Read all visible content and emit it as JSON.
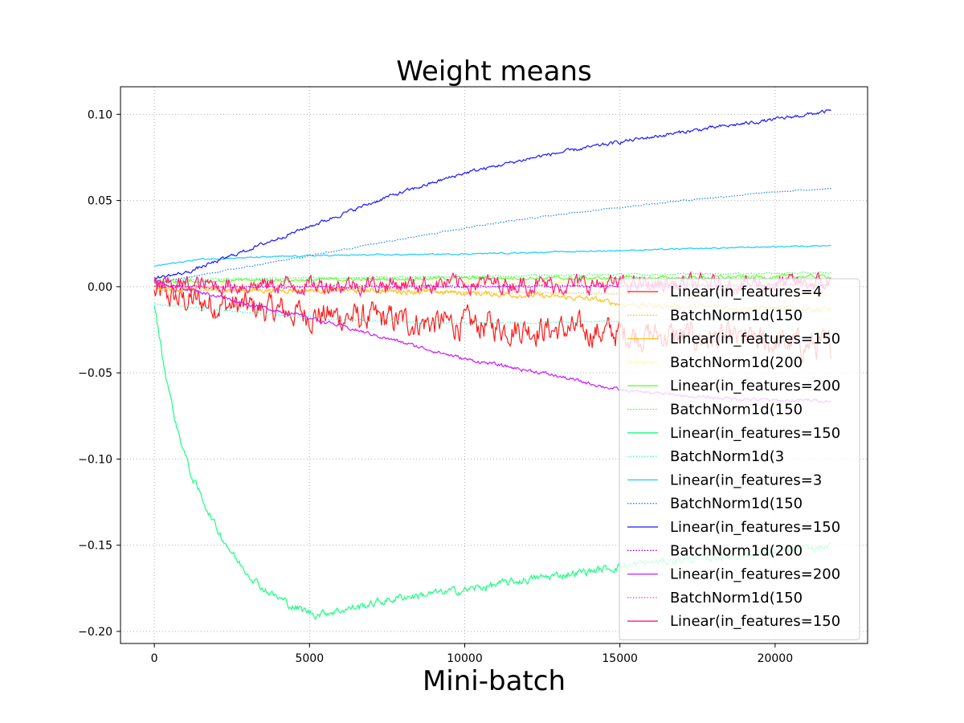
{
  "chart_data": {
    "type": "line",
    "title": "Weight means",
    "xlabel": "Mini-batch",
    "ylabel": "",
    "xlim": [
      -1090,
      22980
    ],
    "ylim": [
      -0.207,
      0.116
    ],
    "xticks": [
      0,
      5000,
      10000,
      15000,
      20000
    ],
    "xtick_labels": [
      "0",
      "5000",
      "10000",
      "15000",
      "20000"
    ],
    "yticks": [
      0.1,
      0.05,
      0.0,
      -0.05,
      -0.1,
      -0.15,
      -0.2
    ],
    "ytick_labels": [
      "0.10",
      "0.05",
      "0.00",
      "−0.05",
      "−0.10",
      "−0.15",
      "−0.20"
    ],
    "grid": true,
    "legend_position": "right",
    "series": [
      {
        "name": "Linear(in_features=4",
        "color": "#ff1a1a",
        "style": "solid",
        "noise": 0.0065,
        "points": [
          [
            0,
            -0.004
          ],
          [
            1000,
            -0.008
          ],
          [
            3000,
            -0.012
          ],
          [
            5000,
            -0.016
          ],
          [
            8000,
            -0.02
          ],
          [
            11000,
            -0.023
          ],
          [
            14000,
            -0.026
          ],
          [
            17000,
            -0.029
          ],
          [
            21800,
            -0.035
          ]
        ]
      },
      {
        "name": "BatchNorm1d(150",
        "color": "#ffb833",
        "style": "dotted",
        "noise": 0.0004,
        "points": [
          [
            0,
            -0.002
          ],
          [
            5000,
            -0.002
          ],
          [
            10000,
            -0.003
          ],
          [
            15000,
            -0.004
          ],
          [
            21800,
            -0.005
          ]
        ]
      },
      {
        "name": "Linear(in_features=150",
        "color": "#ffc21a",
        "style": "solid",
        "noise": 0.0012,
        "points": [
          [
            0,
            -0.001
          ],
          [
            3000,
            -0.002
          ],
          [
            6000,
            -0.002
          ],
          [
            9000,
            -0.003
          ],
          [
            12000,
            -0.005
          ],
          [
            14000,
            -0.007
          ],
          [
            15000,
            -0.01
          ],
          [
            16000,
            -0.011
          ],
          [
            18000,
            -0.012
          ],
          [
            21800,
            -0.013
          ]
        ]
      },
      {
        "name": "BatchNorm1d(200",
        "color": "#ffff33",
        "style": "dotted",
        "noise": 0.0004,
        "points": [
          [
            0,
            0.001
          ],
          [
            10000,
            0.002
          ],
          [
            21800,
            0.003
          ]
        ]
      },
      {
        "name": "Linear(in_features=200",
        "color": "#66ff33",
        "style": "solid",
        "noise": 0.0008,
        "points": [
          [
            0,
            0.003
          ],
          [
            5000,
            0.004
          ],
          [
            10000,
            0.005
          ],
          [
            15000,
            0.005
          ],
          [
            21800,
            0.006
          ]
        ]
      },
      {
        "name": "BatchNorm1d(150",
        "color": "#33ff4d",
        "style": "dotted",
        "noise": 0.0004,
        "points": [
          [
            0,
            0.004
          ],
          [
            5000,
            0.005
          ],
          [
            10000,
            0.006
          ],
          [
            15000,
            0.007
          ],
          [
            21800,
            0.008
          ]
        ]
      },
      {
        "name": "Linear(in_features=150",
        "color": "#1aff80",
        "style": "solid",
        "noise": 0.0018,
        "points": [
          [
            0,
            -0.01
          ],
          [
            300,
            -0.045
          ],
          [
            700,
            -0.08
          ],
          [
            1200,
            -0.11
          ],
          [
            2000,
            -0.14
          ],
          [
            2700,
            -0.16
          ],
          [
            3500,
            -0.175
          ],
          [
            4500,
            -0.186
          ],
          [
            5200,
            -0.19
          ],
          [
            6500,
            -0.186
          ],
          [
            8000,
            -0.18
          ],
          [
            10000,
            -0.176
          ],
          [
            12000,
            -0.17
          ],
          [
            14000,
            -0.165
          ],
          [
            16000,
            -0.16
          ],
          [
            18000,
            -0.157
          ],
          [
            20000,
            -0.154
          ],
          [
            21800,
            -0.151
          ]
        ]
      },
      {
        "name": "BatchNorm1d(3",
        "color": "#33ffcc",
        "style": "dotted",
        "noise": 0.0004,
        "points": [
          [
            0,
            -0.01
          ],
          [
            3000,
            -0.015
          ],
          [
            6000,
            -0.019
          ],
          [
            9000,
            -0.021
          ],
          [
            12000,
            -0.021
          ],
          [
            15000,
            -0.02
          ],
          [
            18000,
            -0.018
          ],
          [
            21800,
            -0.014
          ]
        ]
      },
      {
        "name": "Linear(in_features=3",
        "color": "#1accff",
        "style": "solid",
        "noise": 0.0003,
        "points": [
          [
            0,
            0.012
          ],
          [
            1500,
            0.016
          ],
          [
            5000,
            0.018
          ],
          [
            10000,
            0.019
          ],
          [
            15000,
            0.021
          ],
          [
            21800,
            0.024
          ]
        ]
      },
      {
        "name": "BatchNorm1d(150",
        "color": "#1a80ff",
        "style": "dotted",
        "noise": 0.0003,
        "points": [
          [
            0,
            0.002
          ],
          [
            2500,
            0.01
          ],
          [
            5000,
            0.018
          ],
          [
            8000,
            0.028
          ],
          [
            11000,
            0.037
          ],
          [
            14000,
            0.044
          ],
          [
            17000,
            0.05
          ],
          [
            20000,
            0.055
          ],
          [
            21800,
            0.057
          ]
        ]
      },
      {
        "name": "Linear(in_features=150",
        "color": "#1a1aff",
        "style": "solid",
        "noise": 0.0008,
        "points": [
          [
            0,
            0.005
          ],
          [
            1000,
            0.008
          ],
          [
            2500,
            0.018
          ],
          [
            5000,
            0.035
          ],
          [
            7500,
            0.052
          ],
          [
            10000,
            0.066
          ],
          [
            12500,
            0.076
          ],
          [
            15000,
            0.084
          ],
          [
            17500,
            0.091
          ],
          [
            20000,
            0.097
          ],
          [
            21800,
            0.102
          ]
        ]
      },
      {
        "name": "BatchNorm1d(200",
        "color": "#8000ff",
        "style": "dotted",
        "noise": 0.0006,
        "points": [
          [
            0,
            0.0
          ],
          [
            10000,
            0.0
          ],
          [
            21800,
            0.001
          ]
        ]
      },
      {
        "name": "Linear(in_features=200",
        "color": "#cc1aff",
        "style": "solid",
        "noise": 0.0008,
        "points": [
          [
            0,
            0.003
          ],
          [
            1500,
            -0.003
          ],
          [
            3000,
            -0.01
          ],
          [
            5000,
            -0.018
          ],
          [
            7500,
            -0.03
          ],
          [
            10000,
            -0.042
          ],
          [
            12500,
            -0.05
          ],
          [
            15000,
            -0.06
          ],
          [
            17500,
            -0.064
          ],
          [
            20000,
            -0.066
          ],
          [
            21800,
            -0.066
          ]
        ]
      },
      {
        "name": "BatchNorm1d(150",
        "color": "#ff33e6",
        "style": "dotted",
        "noise": 0.0004,
        "points": [
          [
            0,
            0.0
          ],
          [
            10000,
            0.0
          ],
          [
            21800,
            0.001
          ]
        ]
      },
      {
        "name": "Linear(in_features=150",
        "color": "#ff1a80",
        "style": "solid",
        "noise": 0.004,
        "points": [
          [
            0,
            0.001
          ],
          [
            5000,
            0.001
          ],
          [
            10000,
            0.002
          ],
          [
            15000,
            0.001
          ],
          [
            21800,
            0.002
          ]
        ]
      }
    ]
  }
}
